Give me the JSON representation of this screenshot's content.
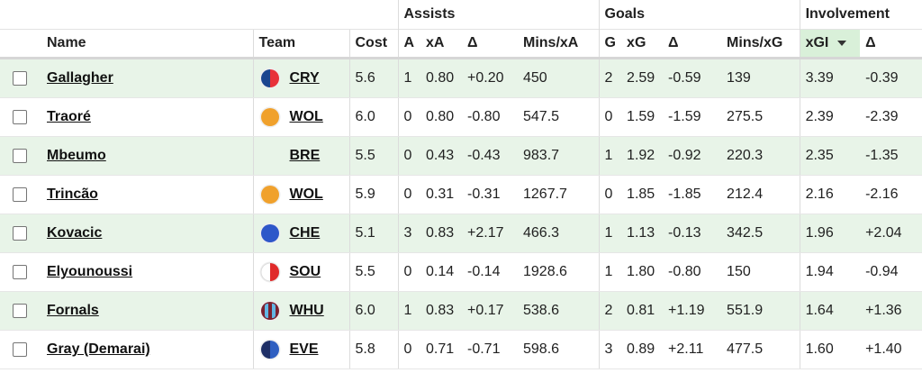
{
  "groups": {
    "assists": "Assists",
    "goals": "Goals",
    "involvement": "Involvement"
  },
  "columns": {
    "name": "Name",
    "team": "Team",
    "cost": "Cost",
    "a": "A",
    "xa": "xA",
    "delta_a": "Δ",
    "mins_xa": "Mins/xA",
    "g": "G",
    "xg": "xG",
    "delta_g": "Δ",
    "mins_xg": "Mins/xG",
    "xgi": "xGI",
    "delta_i": "Δ"
  },
  "sorted_column": "xGI",
  "rows": [
    {
      "name": "Gallagher",
      "team": "CRY",
      "badge": "cry",
      "cost": "5.6",
      "a": "1",
      "xa": "0.80",
      "da": "+0.20",
      "mxa": "450",
      "g": "2",
      "xg": "2.59",
      "dg": "-0.59",
      "mxg": "139",
      "xgi": "3.39",
      "di": "-0.39"
    },
    {
      "name": "Traoré",
      "team": "WOL",
      "badge": "wol",
      "cost": "6.0",
      "a": "0",
      "xa": "0.80",
      "da": "-0.80",
      "mxa": "547.5",
      "g": "0",
      "xg": "1.59",
      "dg": "-1.59",
      "mxg": "275.5",
      "xgi": "2.39",
      "di": "-2.39"
    },
    {
      "name": "Mbeumo",
      "team": "BRE",
      "badge": "none",
      "cost": "5.5",
      "a": "0",
      "xa": "0.43",
      "da": "-0.43",
      "mxa": "983.7",
      "g": "1",
      "xg": "1.92",
      "dg": "-0.92",
      "mxg": "220.3",
      "xgi": "2.35",
      "di": "-1.35"
    },
    {
      "name": "Trincão",
      "team": "WOL",
      "badge": "wol",
      "cost": "5.9",
      "a": "0",
      "xa": "0.31",
      "da": "-0.31",
      "mxa": "1267.7",
      "g": "0",
      "xg": "1.85",
      "dg": "-1.85",
      "mxg": "212.4",
      "xgi": "2.16",
      "di": "-2.16"
    },
    {
      "name": "Kovacic",
      "team": "CHE",
      "badge": "che",
      "cost": "5.1",
      "a": "3",
      "xa": "0.83",
      "da": "+2.17",
      "mxa": "466.3",
      "g": "1",
      "xg": "1.13",
      "dg": "-0.13",
      "mxg": "342.5",
      "xgi": "1.96",
      "di": "+2.04"
    },
    {
      "name": "Elyounoussi",
      "team": "SOU",
      "badge": "sou",
      "cost": "5.5",
      "a": "0",
      "xa": "0.14",
      "da": "-0.14",
      "mxa": "1928.6",
      "g": "1",
      "xg": "1.80",
      "dg": "-0.80",
      "mxg": "150",
      "xgi": "1.94",
      "di": "-0.94"
    },
    {
      "name": "Fornals",
      "team": "WHU",
      "badge": "whu",
      "cost": "6.0",
      "a": "1",
      "xa": "0.83",
      "da": "+0.17",
      "mxa": "538.6",
      "g": "2",
      "xg": "0.81",
      "dg": "+1.19",
      "mxg": "551.9",
      "xgi": "1.64",
      "di": "+1.36"
    },
    {
      "name": "Gray (Demarai)",
      "team": "EVE",
      "badge": "eve",
      "cost": "5.8",
      "a": "0",
      "xa": "0.71",
      "da": "-0.71",
      "mxa": "598.6",
      "g": "3",
      "xg": "0.89",
      "dg": "+2.11",
      "mxg": "477.5",
      "xgi": "1.60",
      "di": "+1.40"
    }
  ],
  "badge_colors": {
    "cry": [
      "#1b458f",
      "#e8313a"
    ],
    "wol": [
      "#f0a12c",
      "#f0a12c"
    ],
    "che": [
      "#2e57c9",
      "#2e57c9"
    ],
    "sou": [
      "#ffffff",
      "#e02a2a"
    ],
    "whu": [
      "#7a2131",
      "#62b6e4"
    ],
    "eve": [
      "#1e2f66",
      "#2f5fc1"
    ]
  }
}
